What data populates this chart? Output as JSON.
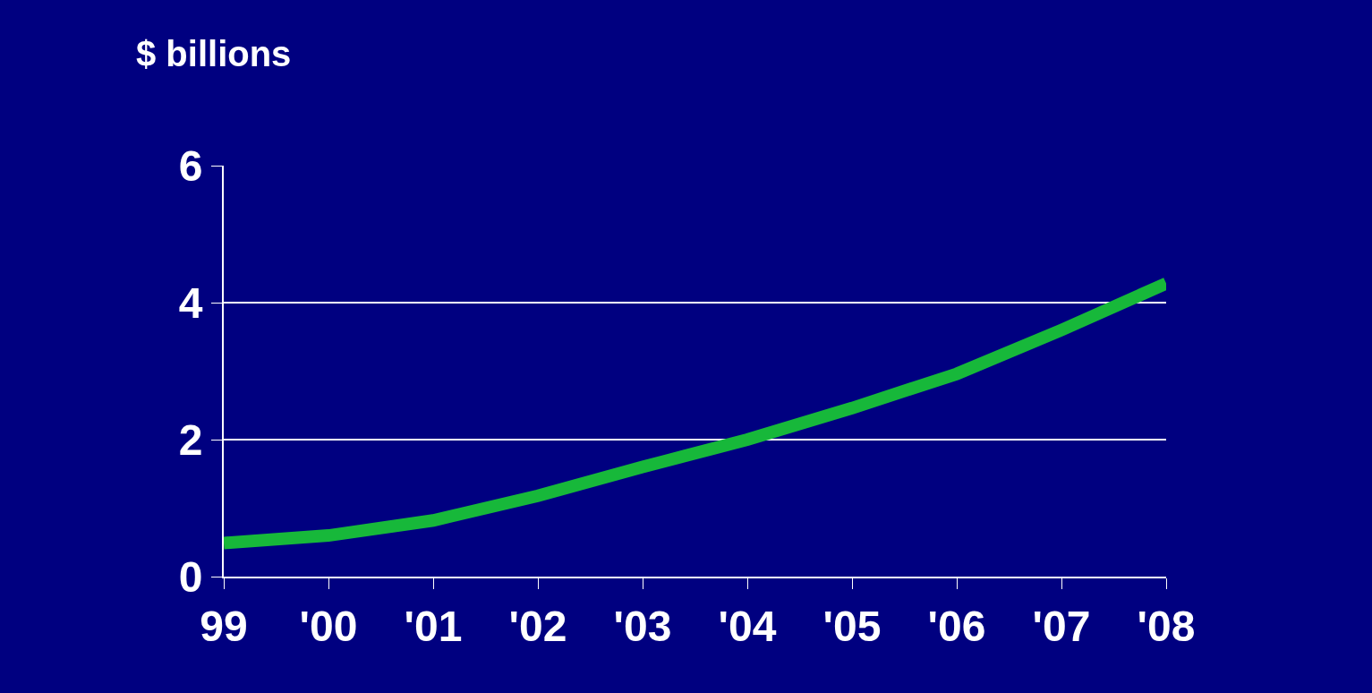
{
  "chart_data": {
    "type": "line",
    "ylabel": "$ billions",
    "categories": [
      "99",
      "'00",
      "'01",
      "'02",
      "'03",
      "'04",
      "'05",
      "'06",
      "'07",
      "'08"
    ],
    "series": [
      {
        "color": "#17b83a",
        "values": [
          0.49,
          0.6,
          0.82,
          1.18,
          1.6,
          2.0,
          2.46,
          2.96,
          3.6,
          4.28
        ]
      }
    ],
    "ylim": [
      0,
      6
    ],
    "yticks": [
      0,
      2,
      4,
      6
    ],
    "grid": "y",
    "marker": "none",
    "line_style": "solid"
  }
}
